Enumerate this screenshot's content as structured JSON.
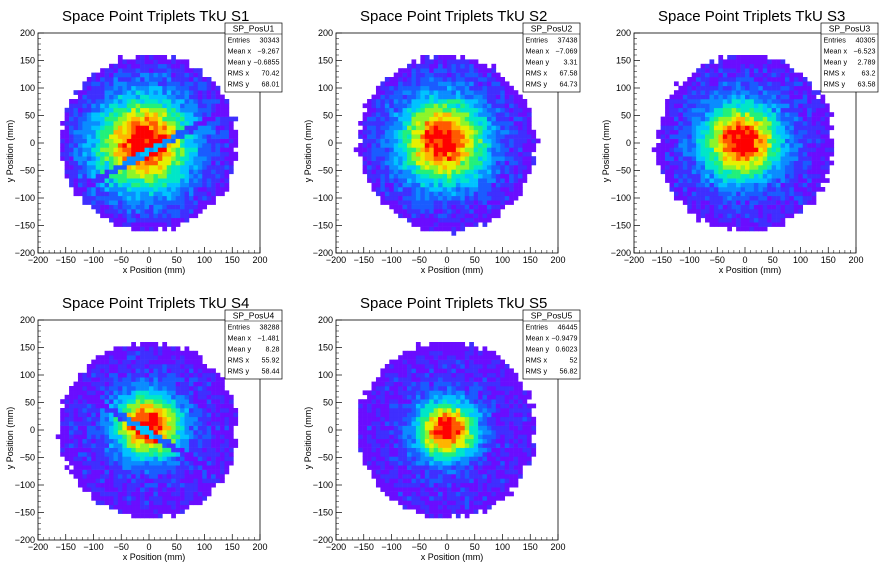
{
  "chart_data": [
    {
      "type": "heatmap",
      "title": "Space Point Triplets TkU S1",
      "xlabel": "x Position (mm)",
      "ylabel": "y Position (mm)",
      "xlim": [
        -200,
        200
      ],
      "ylim": [
        -200,
        200
      ],
      "ticks": [
        "−200",
        "−150",
        "−100",
        "−50",
        "0",
        "50",
        "100",
        "150",
        "200"
      ],
      "stats": {
        "name": "SP_PosU1",
        "rows": [
          {
            "label": "Entries",
            "value": "30343"
          },
          {
            "label": "Mean x",
            "value": "−9.267"
          },
          {
            "label": "Mean y",
            "value": "−0.6855"
          },
          {
            "label": "RMS x",
            "value": "70.42"
          },
          {
            "label": "RMS y",
            "value": "68.01"
          }
        ]
      },
      "distribution": {
        "radius_mm": 160,
        "core_sigma_mm": 60,
        "mean_x": -9.267,
        "mean_y": -0.6855,
        "gap_line": {
          "slope": 0.55,
          "intercept": -15
        }
      }
    },
    {
      "type": "heatmap",
      "title": "Space Point Triplets TkU S2",
      "xlabel": "x Position (mm)",
      "ylabel": "y Position (mm)",
      "xlim": [
        -200,
        200
      ],
      "ylim": [
        -200,
        200
      ],
      "ticks": [
        "−200",
        "−150",
        "−100",
        "−50",
        "0",
        "50",
        "100",
        "150",
        "200"
      ],
      "stats": {
        "name": "SP_PosU2",
        "rows": [
          {
            "label": "Entries",
            "value": "37438"
          },
          {
            "label": "Mean x",
            "value": "−7.069"
          },
          {
            "label": "Mean y",
            "value": "3.31"
          },
          {
            "label": "RMS x",
            "value": "67.58"
          },
          {
            "label": "RMS y",
            "value": "64.73"
          }
        ]
      },
      "distribution": {
        "radius_mm": 160,
        "core_sigma_mm": 55,
        "mean_x": -7.069,
        "mean_y": 3.31
      }
    },
    {
      "type": "heatmap",
      "title": "Space Point Triplets TkU S3",
      "xlabel": "x Position (mm)",
      "ylabel": "y Position (mm)",
      "xlim": [
        -200,
        200
      ],
      "ylim": [
        -200,
        200
      ],
      "ticks": [
        "−200",
        "−150",
        "−100",
        "−50",
        "0",
        "50",
        "100",
        "150",
        "200"
      ],
      "stats": {
        "name": "SP_PosU3",
        "rows": [
          {
            "label": "Entries",
            "value": "40305"
          },
          {
            "label": "Mean x",
            "value": "−6.523"
          },
          {
            "label": "Mean y",
            "value": "2.789"
          },
          {
            "label": "RMS x",
            "value": "63.2"
          },
          {
            "label": "RMS y",
            "value": "63.58"
          }
        ]
      },
      "distribution": {
        "radius_mm": 160,
        "core_sigma_mm": 50,
        "mean_x": -6.523,
        "mean_y": 2.789
      }
    },
    {
      "type": "heatmap",
      "title": "Space Point Triplets TkU S4",
      "xlabel": "x Position (mm)",
      "ylabel": "y Position (mm)",
      "xlim": [
        -200,
        200
      ],
      "ylim": [
        -200,
        200
      ],
      "ticks": [
        "−200",
        "−150",
        "−100",
        "−50",
        "0",
        "50",
        "100",
        "150",
        "200"
      ],
      "stats": {
        "name": "SP_PosU4",
        "rows": [
          {
            "label": "Entries",
            "value": "38288"
          },
          {
            "label": "Mean x",
            "value": "−1.481"
          },
          {
            "label": "Mean y",
            "value": "8.28"
          },
          {
            "label": "RMS x",
            "value": "55.92"
          },
          {
            "label": "RMS y",
            "value": "58.44"
          }
        ]
      },
      "distribution": {
        "radius_mm": 160,
        "core_sigma_mm": 42,
        "mean_x": -1.481,
        "mean_y": 8.28,
        "gap_line": {
          "slope": -0.6,
          "intercept": -5
        }
      }
    },
    {
      "type": "heatmap",
      "title": "Space Point Triplets TkU S5",
      "xlabel": "x Position (mm)",
      "ylabel": "y Position (mm)",
      "xlim": [
        -200,
        200
      ],
      "ylim": [
        -200,
        200
      ],
      "ticks": [
        "−200",
        "−150",
        "−100",
        "−50",
        "0",
        "50",
        "100",
        "150",
        "200"
      ],
      "stats": {
        "name": "SP_PosU5",
        "rows": [
          {
            "label": "Entries",
            "value": "46445"
          },
          {
            "label": "Mean x",
            "value": "−0.9479"
          },
          {
            "label": "Mean y",
            "value": "0.6023"
          },
          {
            "label": "RMS x",
            "value": "52"
          },
          {
            "label": "RMS y",
            "value": "56.82"
          }
        ]
      },
      "distribution": {
        "radius_mm": 160,
        "core_sigma_mm": 38,
        "mean_x": -0.9479,
        "mean_y": 0.6023
      }
    }
  ],
  "colors": {
    "palette": [
      "#6a0dff",
      "#3f2fff",
      "#1a5cff",
      "#0a8cff",
      "#00c3ff",
      "#00e6c8",
      "#22f07a",
      "#8cf52a",
      "#e6f000",
      "#ffb400",
      "#ff5a00",
      "#ff0000"
    ],
    "frame": "#000000",
    "background": "#ffffff"
  }
}
